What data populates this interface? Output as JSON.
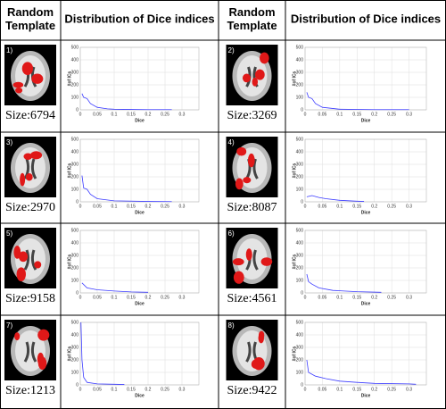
{
  "headers": [
    [
      "Random",
      "Template"
    ],
    [
      "Distribution of Dice indices"
    ],
    [
      "Random",
      "Template"
    ],
    [
      "Distribution of Dice indices"
    ]
  ],
  "cells": [
    {
      "label": "1)",
      "size": "Size:6794",
      "chart": {
        "xlabel": "Dice",
        "ylabel": "#of ICs",
        "xlim": [
          0,
          0.35
        ],
        "ylim": [
          0,
          500
        ],
        "xticks": [
          0,
          0.05,
          0.1,
          0.15,
          0.2,
          0.25,
          0.3
        ],
        "yticks": [
          0,
          100,
          200,
          300,
          400,
          500
        ],
        "color": "#3b3bff",
        "x": [
          0.005,
          0.01,
          0.02,
          0.03,
          0.05,
          0.08,
          0.1,
          0.15,
          0.2,
          0.27
        ],
        "y": [
          130,
          100,
          90,
          50,
          20,
          8,
          5,
          3,
          2,
          2
        ]
      }
    },
    {
      "label": "2)",
      "size": "Size:3269",
      "chart": {
        "xlabel": "Dice",
        "ylabel": "#of ICs",
        "xlim": [
          0,
          0.35
        ],
        "ylim": [
          0,
          500
        ],
        "xticks": [
          0,
          0.05,
          0.1,
          0.15,
          0.2,
          0.25,
          0.3
        ],
        "yticks": [
          0,
          100,
          200,
          300,
          400,
          500
        ],
        "color": "#3b3bff",
        "x": [
          0.005,
          0.01,
          0.02,
          0.03,
          0.05,
          0.1,
          0.2,
          0.3
        ],
        "y": [
          140,
          100,
          90,
          50,
          20,
          5,
          2,
          2
        ]
      }
    },
    {
      "label": "3)",
      "size": "Size:2970",
      "chart": {
        "xlabel": "Dice",
        "ylabel": "#of ICs",
        "xlim": [
          0,
          0.35
        ],
        "ylim": [
          0,
          500
        ],
        "xticks": [
          0,
          0.05,
          0.1,
          0.15,
          0.2,
          0.25,
          0.3
        ],
        "yticks": [
          0,
          100,
          200,
          300,
          400,
          500
        ],
        "color": "#3b3bff",
        "x": [
          0.005,
          0.01,
          0.02,
          0.03,
          0.05,
          0.1,
          0.2,
          0.27
        ],
        "y": [
          210,
          110,
          100,
          60,
          25,
          8,
          3,
          2
        ]
      }
    },
    {
      "label": "4)",
      "size": "Size:8087",
      "chart": {
        "xlabel": "Dice",
        "ylabel": "#of ICs",
        "xlim": [
          0,
          0.35
        ],
        "ylim": [
          0,
          500
        ],
        "xticks": [
          0,
          0.05,
          0.1,
          0.15,
          0.2,
          0.25,
          0.3
        ],
        "yticks": [
          0,
          100,
          200,
          300,
          400,
          500
        ],
        "color": "#3b3bff",
        "x": [
          0.005,
          0.02,
          0.04,
          0.06,
          0.1,
          0.15,
          0.17
        ],
        "y": [
          40,
          50,
          35,
          25,
          12,
          5,
          3
        ]
      }
    },
    {
      "label": "5)",
      "size": "Size:9158",
      "chart": {
        "xlabel": "Dice",
        "ylabel": "#of ICs",
        "xlim": [
          0,
          0.35
        ],
        "ylim": [
          0,
          500
        ],
        "xticks": [
          0,
          0.05,
          0.1,
          0.15,
          0.2,
          0.25,
          0.3
        ],
        "yticks": [
          0,
          100,
          200,
          300,
          400,
          500
        ],
        "color": "#3b3bff",
        "x": [
          0.005,
          0.02,
          0.05,
          0.1,
          0.15,
          0.2
        ],
        "y": [
          80,
          40,
          25,
          15,
          8,
          5
        ]
      }
    },
    {
      "label": "6)",
      "size": "Size:4561",
      "chart": {
        "xlabel": "Dice",
        "ylabel": "#of ICs",
        "xlim": [
          0,
          0.35
        ],
        "ylim": [
          0,
          500
        ],
        "xticks": [
          0,
          0.05,
          0.1,
          0.15,
          0.2,
          0.25,
          0.3
        ],
        "yticks": [
          0,
          100,
          200,
          300,
          400,
          500
        ],
        "color": "#3b3bff",
        "x": [
          0.005,
          0.01,
          0.02,
          0.04,
          0.08,
          0.15,
          0.22
        ],
        "y": [
          150,
          90,
          70,
          40,
          20,
          10,
          5
        ]
      }
    },
    {
      "label": "7)",
      "size": "Size:1213",
      "chart": {
        "xlabel": "Dice",
        "ylabel": "#of ICs",
        "xlim": [
          0,
          0.35
        ],
        "ylim": [
          0,
          500
        ],
        "xticks": [
          0,
          0.05,
          0.1,
          0.15,
          0.2,
          0.25,
          0.3
        ],
        "yticks": [
          0,
          100,
          200,
          300,
          400,
          500
        ],
        "color": "#3b3bff",
        "x": [
          0.002,
          0.005,
          0.01,
          0.02,
          0.05,
          0.1,
          0.13
        ],
        "y": [
          500,
          200,
          60,
          20,
          8,
          5,
          3
        ]
      }
    },
    {
      "label": "8)",
      "size": "Size:9422",
      "chart": {
        "xlabel": "Dice",
        "ylabel": "#of ICs",
        "xlim": [
          0,
          0.35
        ],
        "ylim": [
          0,
          500
        ],
        "xticks": [
          0,
          0.05,
          0.1,
          0.15,
          0.2,
          0.25,
          0.3
        ],
        "yticks": [
          0,
          100,
          200,
          300,
          400,
          500
        ],
        "color": "#3b3bff",
        "x": [
          0.005,
          0.01,
          0.03,
          0.06,
          0.1,
          0.15,
          0.2,
          0.3,
          0.32
        ],
        "y": [
          200,
          100,
          70,
          50,
          30,
          20,
          12,
          8,
          5
        ]
      }
    }
  ]
}
